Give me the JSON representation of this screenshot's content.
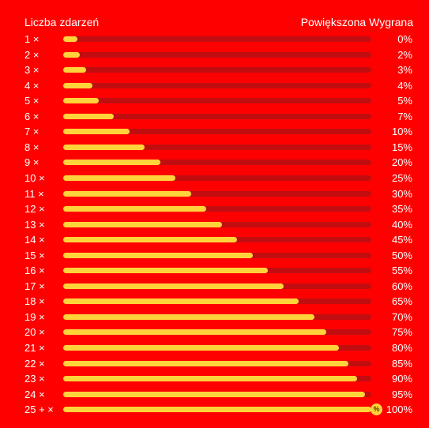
{
  "header": {
    "left_label": "Liczba zdarzeń",
    "right_label": "Powiększona Wygrana"
  },
  "colors": {
    "background": "#ff0000",
    "track": "#c10d10",
    "fill": "#ffd43b",
    "text": "#ffffff"
  },
  "rows": [
    {
      "count": "1 ×",
      "percent": "0%",
      "fill": 0.045
    },
    {
      "count": "2 ×",
      "percent": "2%",
      "fill": 0.055
    },
    {
      "count": "3 ×",
      "percent": "3%",
      "fill": 0.075
    },
    {
      "count": "4 ×",
      "percent": "4%",
      "fill": 0.095
    },
    {
      "count": "5 ×",
      "percent": "5%",
      "fill": 0.115
    },
    {
      "count": "6 ×",
      "percent": "7%",
      "fill": 0.165
    },
    {
      "count": "7 ×",
      "percent": "10%",
      "fill": 0.215
    },
    {
      "count": "8 ×",
      "percent": "15%",
      "fill": 0.265
    },
    {
      "count": "9 ×",
      "percent": "20%",
      "fill": 0.315
    },
    {
      "count": "10 ×",
      "percent": "25%",
      "fill": 0.365
    },
    {
      "count": "11 ×",
      "percent": "30%",
      "fill": 0.415
    },
    {
      "count": "12 ×",
      "percent": "35%",
      "fill": 0.465
    },
    {
      "count": "13 ×",
      "percent": "40%",
      "fill": 0.515
    },
    {
      "count": "14 ×",
      "percent": "45%",
      "fill": 0.565
    },
    {
      "count": "15 ×",
      "percent": "50%",
      "fill": 0.615
    },
    {
      "count": "16 ×",
      "percent": "55%",
      "fill": 0.665
    },
    {
      "count": "17 ×",
      "percent": "60%",
      "fill": 0.715
    },
    {
      "count": "18 ×",
      "percent": "65%",
      "fill": 0.765
    },
    {
      "count": "19 ×",
      "percent": "70%",
      "fill": 0.815
    },
    {
      "count": "20 ×",
      "percent": "75%",
      "fill": 0.855
    },
    {
      "count": "21 ×",
      "percent": "80%",
      "fill": 0.895
    },
    {
      "count": "22 ×",
      "percent": "85%",
      "fill": 0.925
    },
    {
      "count": "23 ×",
      "percent": "90%",
      "fill": 0.955
    },
    {
      "count": "24 ×",
      "percent": "95%",
      "fill": 0.98
    },
    {
      "count": "25 + ×",
      "percent": "100%",
      "fill": 1.0,
      "badge": "%",
      "badge_icon": "percent-badge-icon"
    }
  ]
}
